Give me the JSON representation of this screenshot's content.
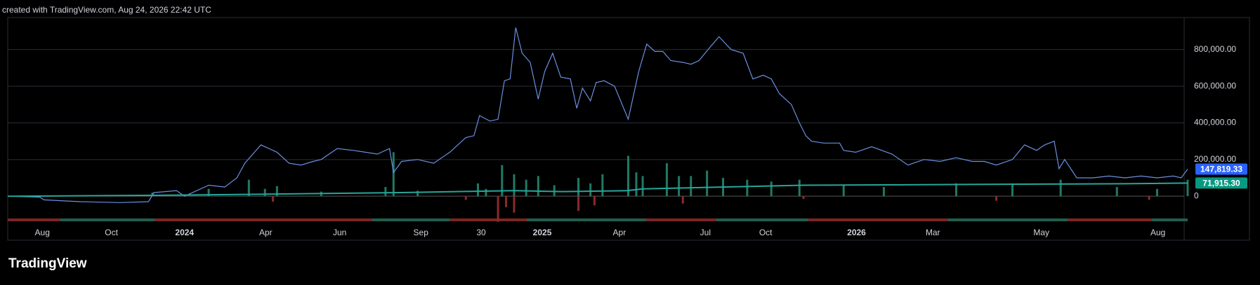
{
  "chart_data": {
    "type": "line",
    "title": "created with TradingView.com, Aug 24, 2026 22:42 UTC",
    "brand": "TradingView",
    "xlim": [
      10,
      1478
    ],
    "xticks": [
      {
        "value": 53,
        "label": "Aug"
      },
      {
        "value": 139,
        "label": "Oct"
      },
      {
        "value": 230,
        "label": "2024"
      },
      {
        "value": 331,
        "label": "Apr"
      },
      {
        "value": 423,
        "label": "Jun"
      },
      {
        "value": 524,
        "label": "Sep"
      },
      {
        "value": 599,
        "label": "30"
      },
      {
        "value": 675,
        "label": "2025"
      },
      {
        "value": 771,
        "label": "Apr"
      },
      {
        "value": 878,
        "label": "Jul"
      },
      {
        "value": 953,
        "label": "Oct"
      },
      {
        "value": 1066,
        "label": "2026"
      },
      {
        "value": 1161,
        "label": "Mar"
      },
      {
        "value": 1296,
        "label": "May"
      },
      {
        "value": 1441,
        "label": "Aug"
      }
    ],
    "ylim": [
      -240000,
      975000
    ],
    "yticks": [
      {
        "value": 0,
        "label": "0"
      },
      {
        "value": 200000,
        "label": "200,000.00"
      },
      {
        "value": 400000,
        "label": "400,000.00"
      },
      {
        "value": 600000,
        "label": "600,000.00"
      },
      {
        "value": 800000,
        "label": "800,000.00"
      }
    ],
    "grid": true,
    "series": [
      {
        "color": "#6b8fe0",
        "last_value": 147819.33,
        "last_label": "147,819.33",
        "x": [
          10,
          50,
          55,
          100,
          150,
          185,
          192,
          220,
          230,
          260,
          280,
          295,
          305,
          325,
          345,
          360,
          375,
          390,
          400,
          420,
          440,
          470,
          485,
          490,
          500,
          520,
          540,
          560,
          580,
          590,
          597,
          610,
          620,
          628,
          635,
          642,
          650,
          660,
          670,
          678,
          688,
          698,
          710,
          718,
          725,
          735,
          742,
          752,
          765,
          782,
          795,
          805,
          815,
          825,
          835,
          850,
          860,
          870,
          885,
          895,
          910,
          925,
          937,
          950,
          960,
          970,
          985,
          995,
          1003,
          1010,
          1025,
          1045,
          1050,
          1065,
          1085,
          1110,
          1130,
          1150,
          1170,
          1190,
          1210,
          1225,
          1240,
          1260,
          1275,
          1290,
          1300,
          1312,
          1318,
          1325,
          1340,
          1360,
          1380,
          1400,
          1420,
          1440,
          1460,
          1470,
          1478
        ],
        "values": [
          0,
          -5000,
          -20000,
          -30000,
          -35000,
          -30000,
          20000,
          30000,
          0,
          60000,
          50000,
          100000,
          180000,
          280000,
          240000,
          180000,
          170000,
          190000,
          200000,
          260000,
          250000,
          230000,
          260000,
          130000,
          190000,
          200000,
          180000,
          240000,
          320000,
          330000,
          440000,
          410000,
          420000,
          630000,
          640000,
          920000,
          780000,
          730000,
          530000,
          680000,
          780000,
          650000,
          640000,
          480000,
          590000,
          520000,
          620000,
          630000,
          600000,
          420000,
          680000,
          830000,
          790000,
          790000,
          740000,
          730000,
          720000,
          740000,
          820000,
          870000,
          800000,
          780000,
          640000,
          660000,
          640000,
          560000,
          500000,
          400000,
          330000,
          300000,
          290000,
          290000,
          250000,
          240000,
          270000,
          230000,
          170000,
          200000,
          190000,
          210000,
          190000,
          190000,
          170000,
          200000,
          280000,
          250000,
          280000,
          300000,
          150000,
          200000,
          100000,
          100000,
          110000,
          100000,
          110000,
          100000,
          110000,
          100000,
          147819.33
        ]
      },
      {
        "color": "#26a69a",
        "last_value": 71915.3,
        "last_label": "71,915.30",
        "x": [
          10,
          200,
          350,
          500,
          640,
          700,
          780,
          800,
          900,
          1000,
          1100,
          1200,
          1300,
          1400,
          1478
        ],
        "values": [
          0,
          5000,
          12000,
          20000,
          30000,
          25000,
          30000,
          40000,
          50000,
          60000,
          62000,
          64000,
          66000,
          68000,
          71915.3
        ]
      }
    ],
    "volume": {
      "up_color": "#1f7a64",
      "down_color": "#8b2a2a",
      "x": [
        190,
        260,
        310,
        330,
        345,
        400,
        480,
        490,
        520,
        595,
        605,
        625,
        640,
        655,
        670,
        690,
        720,
        735,
        750,
        782,
        792,
        800,
        830,
        845,
        860,
        880,
        900,
        930,
        960,
        995,
        1050,
        1100,
        1190,
        1260,
        1320,
        1390,
        1440,
        1478
      ],
      "values": [
        20000,
        40000,
        90000,
        40000,
        55000,
        25000,
        50000,
        240000,
        30000,
        70000,
        40000,
        170000,
        120000,
        90000,
        110000,
        60000,
        100000,
        70000,
        120000,
        220000,
        130000,
        110000,
        180000,
        110000,
        110000,
        140000,
        100000,
        90000,
        80000,
        90000,
        60000,
        50000,
        70000,
        70000,
        90000,
        50000,
        40000,
        90000
      ]
    },
    "volume_down": {
      "x": [
        340,
        580,
        620,
        630,
        640,
        720,
        740,
        850,
        1000,
        1240,
        1430
      ],
      "values": [
        -30000,
        -20000,
        -140000,
        -60000,
        -90000,
        -80000,
        -50000,
        -40000,
        -15000,
        -25000,
        -20000
      ]
    }
  }
}
